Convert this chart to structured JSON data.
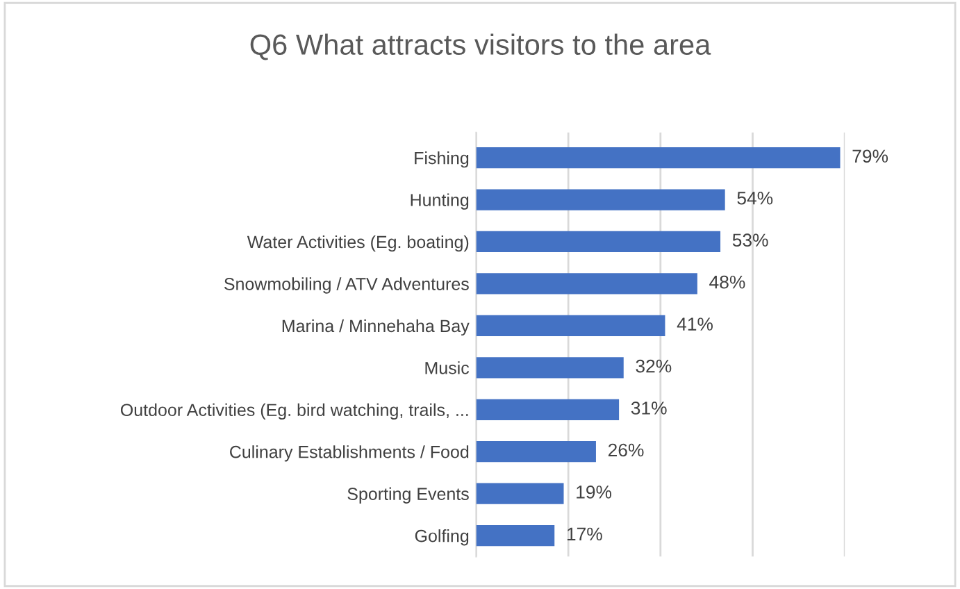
{
  "chart_data": {
    "type": "bar",
    "orientation": "horizontal",
    "title": "Q6 What attracts visitors to the area",
    "categories": [
      "Fishing",
      "Hunting",
      "Water Activities (Eg. boating)",
      "Snowmobiling / ATV Adventures",
      "Marina / Minnehaha Bay",
      "Music",
      "Outdoor Activities (Eg. bird watching, trails, ...",
      "Culinary Establishments / Food",
      "Sporting Events",
      "Golfing"
    ],
    "values": [
      79,
      54,
      53,
      48,
      41,
      32,
      31,
      26,
      19,
      17
    ],
    "value_labels": [
      "79%",
      "54%",
      "53%",
      "48%",
      "41%",
      "32%",
      "31%",
      "26%",
      "19%",
      "17%"
    ],
    "color": "#4472c4",
    "xlim": [
      0,
      80
    ],
    "xticks": [
      {
        "value": 0,
        "label": null
      },
      {
        "value": 20,
        "label": null
      },
      {
        "value": 40,
        "label": null
      },
      {
        "value": 60,
        "label": null
      },
      {
        "value": 80,
        "label": null
      }
    ],
    "grid": "x",
    "tick_labels": "y"
  }
}
